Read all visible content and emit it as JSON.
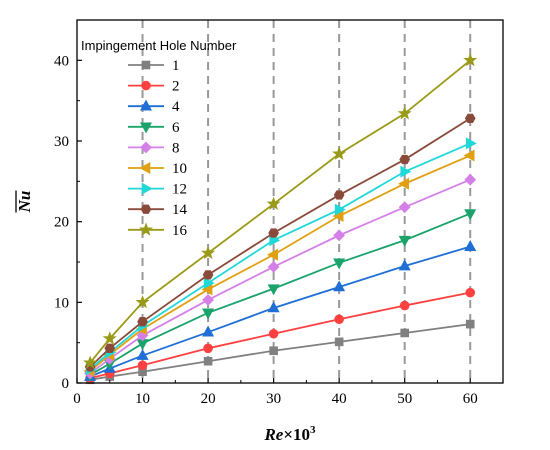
{
  "chart_data": {
    "type": "line",
    "title": "",
    "xlabel": "Re×10³",
    "xlabel_main": "Re",
    "xlabel_suffix": "×10",
    "xlabel_exp": "3",
    "ylabel": "Nu",
    "xlim": [
      0,
      65
    ],
    "ylim": [
      0,
      45
    ],
    "xticks": [
      0,
      10,
      20,
      30,
      40,
      50,
      60
    ],
    "yticks": [
      0,
      10,
      20,
      30,
      40
    ],
    "vertical_dashed_gridlines": [
      10,
      20,
      30,
      40,
      50,
      60
    ],
    "legend_title": "Impingement Hole Number",
    "legend_position": "top-left",
    "x": [
      2,
      5,
      10,
      20,
      30,
      40,
      50,
      60
    ],
    "series": [
      {
        "name": "1",
        "color": "#808080",
        "marker": "square",
        "values": [
          0.4,
          0.8,
          1.4,
          2.7,
          4.0,
          5.1,
          6.2,
          7.3
        ]
      },
      {
        "name": "2",
        "color": "#ff4040",
        "marker": "circle",
        "values": [
          0.6,
          1.2,
          2.2,
          4.3,
          6.1,
          7.9,
          9.6,
          11.2
        ]
      },
      {
        "name": "4",
        "color": "#1f6fd6",
        "marker": "triangle-up",
        "values": [
          0.8,
          1.8,
          3.4,
          6.3,
          9.3,
          11.9,
          14.5,
          16.9
        ]
      },
      {
        "name": "6",
        "color": "#1aa36b",
        "marker": "triangle-down",
        "values": [
          1.0,
          2.4,
          4.9,
          8.7,
          11.7,
          14.9,
          17.7,
          21.0
        ]
      },
      {
        "name": "8",
        "color": "#d580e8",
        "marker": "diamond",
        "values": [
          1.2,
          3.0,
          5.9,
          10.3,
          14.4,
          18.3,
          21.8,
          25.2
        ]
      },
      {
        "name": "10",
        "color": "#e0a010",
        "marker": "triangle-left",
        "values": [
          1.5,
          3.5,
          6.7,
          11.6,
          15.9,
          20.7,
          24.7,
          28.2
        ]
      },
      {
        "name": "12",
        "color": "#20d8d8",
        "marker": "triangle-right",
        "values": [
          1.7,
          3.8,
          7.1,
          12.4,
          17.7,
          21.5,
          26.2,
          29.7
        ]
      },
      {
        "name": "14",
        "color": "#8a4a3a",
        "marker": "hexagon",
        "values": [
          2.0,
          4.3,
          7.6,
          13.4,
          18.6,
          23.3,
          27.7,
          32.8
        ]
      },
      {
        "name": "16",
        "color": "#9a9a18",
        "marker": "star",
        "values": [
          2.5,
          5.5,
          10.0,
          16.1,
          22.2,
          28.4,
          33.4,
          40.0
        ]
      }
    ]
  }
}
